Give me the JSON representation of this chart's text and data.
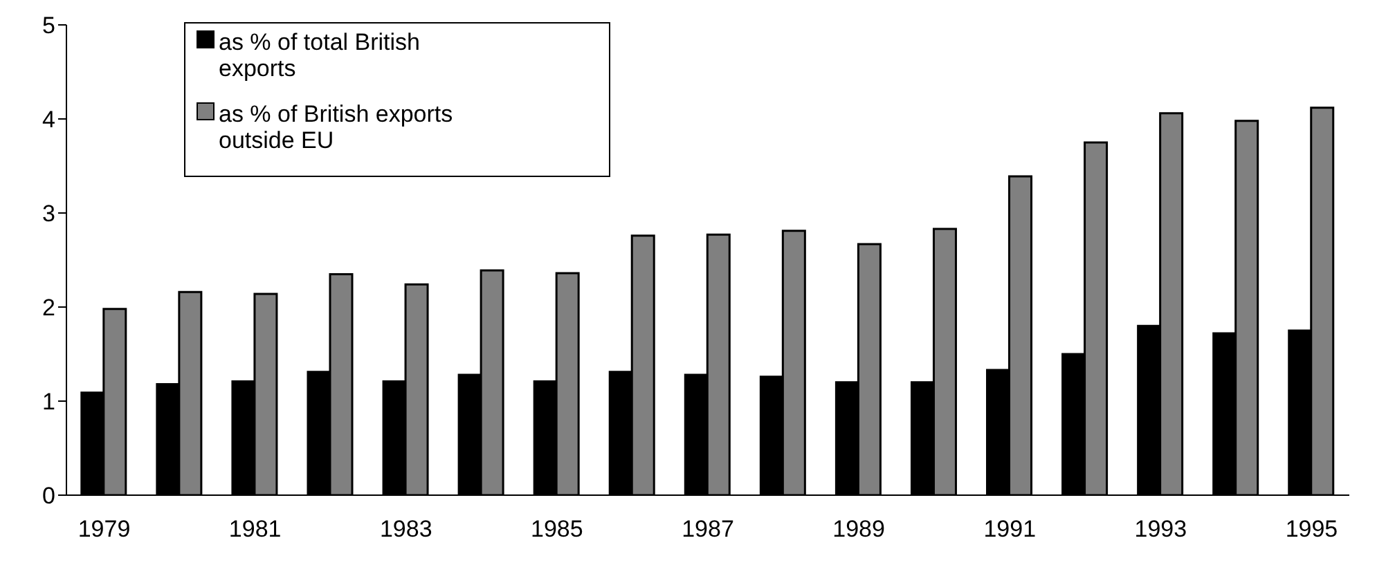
{
  "chart_data": {
    "type": "bar",
    "categories": [
      "1979",
      null,
      "1981",
      null,
      "1983",
      null,
      "1985",
      null,
      "1987",
      null,
      "1989",
      null,
      "1991",
      null,
      "1993",
      null,
      "1995"
    ],
    "series": [
      {
        "name": "as % of total British exports",
        "color": "#000000",
        "values": [
          1.09,
          1.18,
          1.21,
          1.31,
          1.21,
          1.28,
          1.21,
          1.31,
          1.28,
          1.26,
          1.2,
          1.2,
          1.33,
          1.5,
          1.8,
          1.72,
          1.75
        ]
      },
      {
        "name": "as % of British exports outside EU",
        "color": "#808080",
        "values": [
          1.98,
          2.16,
          2.14,
          2.35,
          2.24,
          2.39,
          2.36,
          2.76,
          2.77,
          2.81,
          2.67,
          2.83,
          3.39,
          3.75,
          4.06,
          3.98,
          4.12
        ]
      }
    ],
    "ylim": [
      0,
      5
    ],
    "yticks": [
      0,
      1,
      2,
      3,
      4,
      5
    ],
    "grid": false,
    "legend": "top left"
  }
}
